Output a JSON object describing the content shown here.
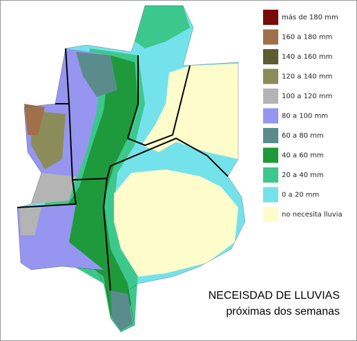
{
  "title": "NECEISDAD DE LLUVIAS",
  "subtitle": "próximas dos semanas",
  "legend": [
    {
      "label": "más de 180 mm",
      "color": "#7a0a0a"
    },
    {
      "label": "160 a 180 mm",
      "color": "#a0704a"
    },
    {
      "label": "140 a 160 mm",
      "color": "#5c5c2e"
    },
    {
      "label": "120 a 140 mm",
      "color": "#8c8c5a"
    },
    {
      "label": "100 a 120 mm",
      "color": "#b4b4b4"
    },
    {
      "label": "80 a 100 mm",
      "color": "#9696f0"
    },
    {
      "label": "60 a 80 mm",
      "color": "#5a8c8c"
    },
    {
      "label": "40 a 60 mm",
      "color": "#1e9a3c"
    },
    {
      "label": "20 a 40 mm",
      "color": "#3cc88c"
    },
    {
      "label": "0 a 20 mm",
      "color": "#74e2ea"
    },
    {
      "label": "no necesita lluvia",
      "color": "#fffccc"
    }
  ]
}
